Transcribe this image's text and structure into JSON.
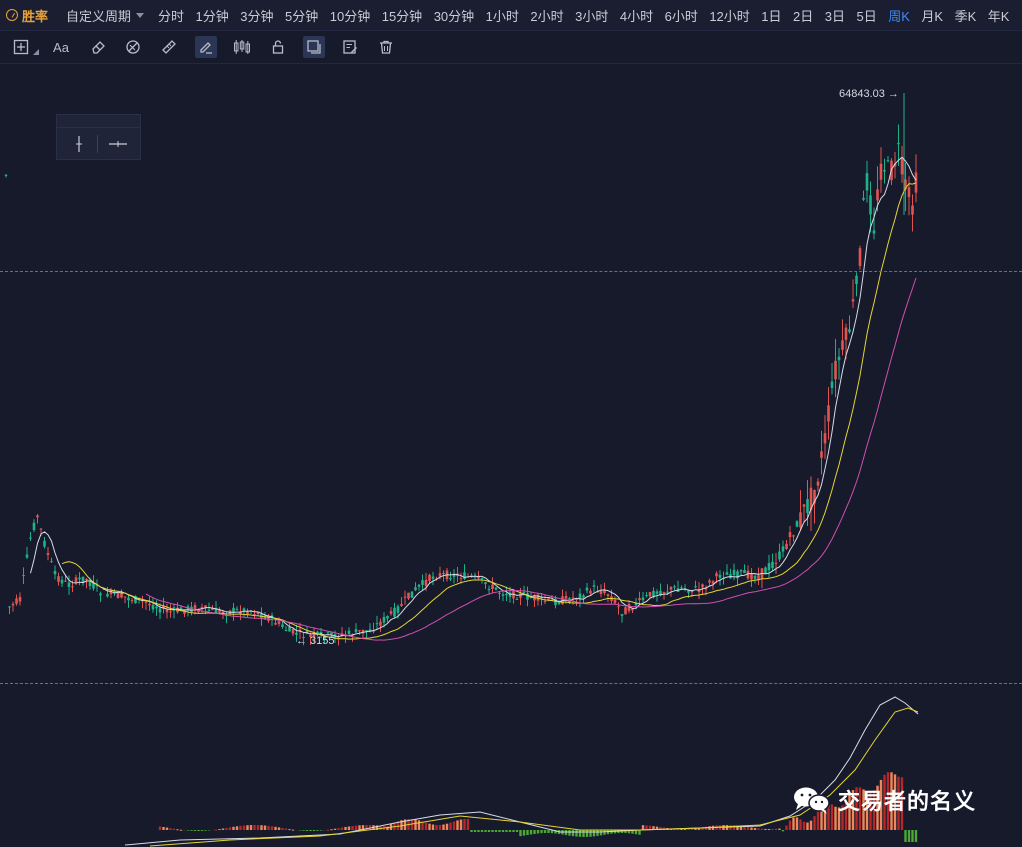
{
  "header": {
    "logo_text": "胜率",
    "custom_period": "自定义周期",
    "timeframes": [
      "分时",
      "1分钟",
      "3分钟",
      "5分钟",
      "10分钟",
      "15分钟",
      "30分钟",
      "1小时",
      "2小时",
      "3小时",
      "4小时",
      "6小时",
      "12小时",
      "1日",
      "2日",
      "3日",
      "5日",
      "周K",
      "月K",
      "季K",
      "年K"
    ],
    "active_timeframe": "周K"
  },
  "toolbar": {
    "tools": [
      "crosshair-add-icon",
      "text-tool-icon",
      "eraser-icon",
      "magnet-icon",
      "ruler-icon",
      "pen-edit-icon",
      "candles-icon",
      "lock-icon",
      "layers-icon",
      "note-edit-icon",
      "trash-icon"
    ],
    "text_tool_label": "Aa",
    "active_tool": "pen-edit-icon"
  },
  "chart": {
    "high_label": "64843.03 →",
    "low_label": "← 3155",
    "colors": {
      "up": "#e2544f",
      "down": "#1fb18a",
      "ma5": "#d8dbe6",
      "ma10": "#e6d431",
      "ma20": "#d04fb0",
      "hist_pos": "#b82727",
      "hist_pos_light": "#f0875c",
      "hist_neg": "#4caa34"
    }
  },
  "chart_data": {
    "type": "candlestick",
    "title": "",
    "price_high": 64843.03,
    "price_low": 3155,
    "indicators": [
      "MA",
      "MACD"
    ]
  },
  "watermark": {
    "text": "交易者的名义",
    "icon": "wechat-icon"
  }
}
